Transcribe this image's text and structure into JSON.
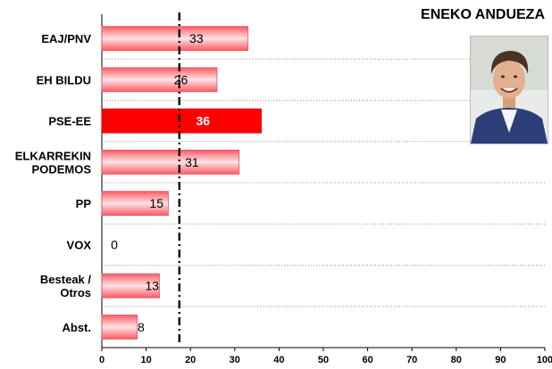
{
  "title": "ENEKO ANDUEZA",
  "photo": {
    "alt": "portrait",
    "icon": "person-portrait-icon"
  },
  "chart_data": {
    "type": "bar",
    "orientation": "horizontal",
    "categories": [
      [
        "EAJ/PNV"
      ],
      [
        "EH BILDU"
      ],
      [
        "PSE-EE"
      ],
      [
        "ELKARREKIN",
        "PODEMOS"
      ],
      [
        "PP"
      ],
      [
        "VOX"
      ],
      [
        "Besteak /",
        "Otros"
      ],
      [
        "Abst."
      ]
    ],
    "values": [
      33,
      26,
      36,
      31,
      15,
      0,
      13,
      8
    ],
    "value_labels": [
      "33",
      "26",
      "36",
      "31",
      "15",
      "0",
      "13",
      "8"
    ],
    "highlight_index": 2,
    "xlim": [
      0,
      100
    ],
    "xticks": [
      0,
      10,
      20,
      30,
      40,
      50,
      60,
      70,
      80,
      90,
      100
    ],
    "xtick_labels": [
      "0",
      "10",
      "20",
      "30",
      "40",
      "50",
      "60",
      "70",
      "80",
      "90",
      "100"
    ],
    "reference_line": 17.5,
    "grid": "horizontal-dotted",
    "colors": {
      "bar": "#ff6b74",
      "bar_light": "#ffd9dc",
      "highlight": "#ff0000",
      "reference": "#000000"
    }
  }
}
